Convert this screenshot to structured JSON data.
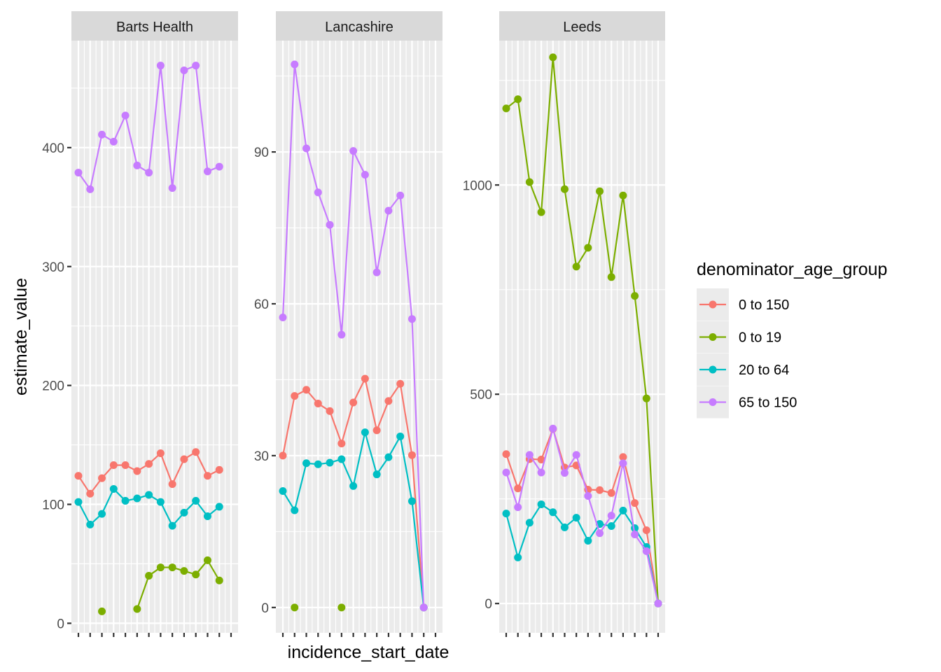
{
  "chart_data": {
    "type": "line",
    "facet_by": "database",
    "xlabel": "incidence_start_date",
    "ylabel": "estimate_value",
    "x_tick_labels_visible": false,
    "n_x_points": 14,
    "grid": true,
    "legend": {
      "title": "denominator_age_group",
      "position": "right",
      "entries": [
        "0 to 150",
        "0 to 19",
        "20 to 64",
        "65 to 150"
      ]
    },
    "colors": {
      "0 to 150": "#F8766D",
      "0 to 19": "#7CAE00",
      "20 to 64": "#00BFC4",
      "65 to 150": "#C77CFF"
    },
    "panels": [
      {
        "title": "Barts Health",
        "ylim": [
          -8,
          490
        ],
        "yticks": [
          0,
          100,
          200,
          300,
          400
        ],
        "ytick_labels": [
          "0",
          "100",
          "200",
          "300",
          "400"
        ],
        "series": [
          {
            "name": "0 to 150",
            "values": [
              124,
              109,
              122,
              133,
              133,
              128,
              134,
              143,
              117,
              138,
              144,
              124,
              129
            ]
          },
          {
            "name": "0 to 19",
            "values": [
              null,
              null,
              10,
              null,
              null,
              12,
              40,
              47,
              47,
              44,
              41,
              53,
              36
            ]
          },
          {
            "name": "20 to 64",
            "values": [
              102,
              83,
              92,
              113,
              103,
              105,
              108,
              102,
              82,
              93,
              103,
              90,
              98
            ]
          },
          {
            "name": "65 to 150",
            "values": [
              379,
              365,
              411,
              405,
              427,
              385,
              379,
              469,
              366,
              465,
              469,
              380,
              384
            ]
          }
        ]
      },
      {
        "title": "Lancashire",
        "ylim": [
          -5,
          112
        ],
        "yticks": [
          0,
          30,
          60,
          90
        ],
        "ytick_labels": [
          "0",
          "30",
          "60",
          "90"
        ],
        "series": [
          {
            "name": "0 to 150",
            "values": [
              30,
              41.8,
              43,
              40.3,
              38.8,
              32.4,
              40.5,
              45.2,
              35,
              40.8,
              44.2,
              30.1,
              0
            ]
          },
          {
            "name": "0 to 19",
            "values": [
              null,
              0,
              null,
              null,
              null,
              0,
              null,
              null,
              null,
              null,
              null,
              null,
              null
            ]
          },
          {
            "name": "20 to 64",
            "values": [
              23,
              19.2,
              28.5,
              28.3,
              28.6,
              29.3,
              24,
              34.6,
              26.3,
              29.7,
              33.8,
              21,
              0
            ]
          },
          {
            "name": "65 to 150",
            "values": [
              57.3,
              107.3,
              90.7,
              82,
              75.6,
              53.9,
              90.2,
              85.5,
              66.2,
              78.4,
              81.4,
              57,
              0
            ]
          }
        ]
      },
      {
        "title": "Leeds",
        "ylim": [
          -70,
          1345
        ],
        "yticks": [
          0,
          500,
          1000
        ],
        "ytick_labels": [
          "0",
          "500",
          "1000"
        ],
        "series": [
          {
            "name": "0 to 150",
            "values": [
              357,
              275,
              345,
              344,
              417,
              325,
              330,
              272,
              271,
              264,
              350,
              240,
              175,
              0
            ]
          },
          {
            "name": "0 to 19",
            "values": [
              1183,
              1205,
              1007,
              935,
              1305,
              990,
              805,
              850,
              985,
              780,
              975,
              735,
              490,
              0
            ]
          },
          {
            "name": "20 to 64",
            "values": [
              215,
              110,
              193,
              237,
              218,
              182,
              205,
              150,
              190,
              185,
              222,
              180,
              135,
              0
            ]
          },
          {
            "name": "65 to 150",
            "values": [
              313,
              230,
              355,
              313,
              418,
              312,
              355,
              257,
              168,
              210,
              335,
              165,
              125,
              0
            ]
          }
        ]
      }
    ]
  }
}
